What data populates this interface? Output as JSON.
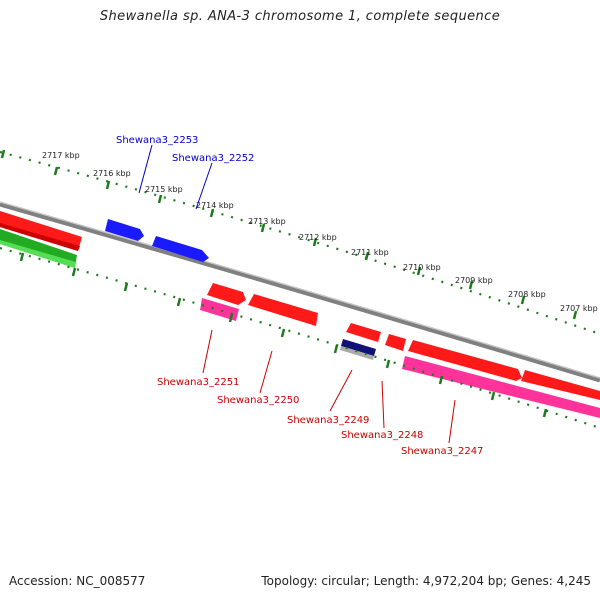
{
  "title": "Shewanella sp. ANA-3 chromosome 1, complete sequence",
  "footer": {
    "accession": "Accession: NC_008577",
    "summary": "Topology: circular; Length: 4,972,204 bp; Genes: 4,245"
  },
  "colors": {
    "backbone": "#8c8c8c",
    "forward_gene": "#1a1aff",
    "reverse_gene": "#ff1a1a",
    "pseudo_gene": "#ff3399",
    "rna_gene": "#111177",
    "green_track": "#22aa22",
    "tick": "#1f7a1f"
  },
  "ruler": {
    "labels": [
      "2717 kbp",
      "2716 kbp",
      "2715 kbp",
      "2714 kbp",
      "2713 kbp",
      "2712 kbp",
      "2711 kbp",
      "2710 kbp",
      "2709 kbp",
      "2708 kbp",
      "2707 kbp"
    ]
  },
  "genes": {
    "forward": [
      {
        "id": "Shewana3_2253"
      },
      {
        "id": "Shewana3_2252"
      }
    ],
    "reverse": [
      {
        "id": "Shewana3_2251"
      },
      {
        "id": "Shewana3_2250"
      },
      {
        "id": "Shewana3_2249"
      },
      {
        "id": "Shewana3_2248"
      },
      {
        "id": "Shewana3_2247"
      }
    ]
  }
}
